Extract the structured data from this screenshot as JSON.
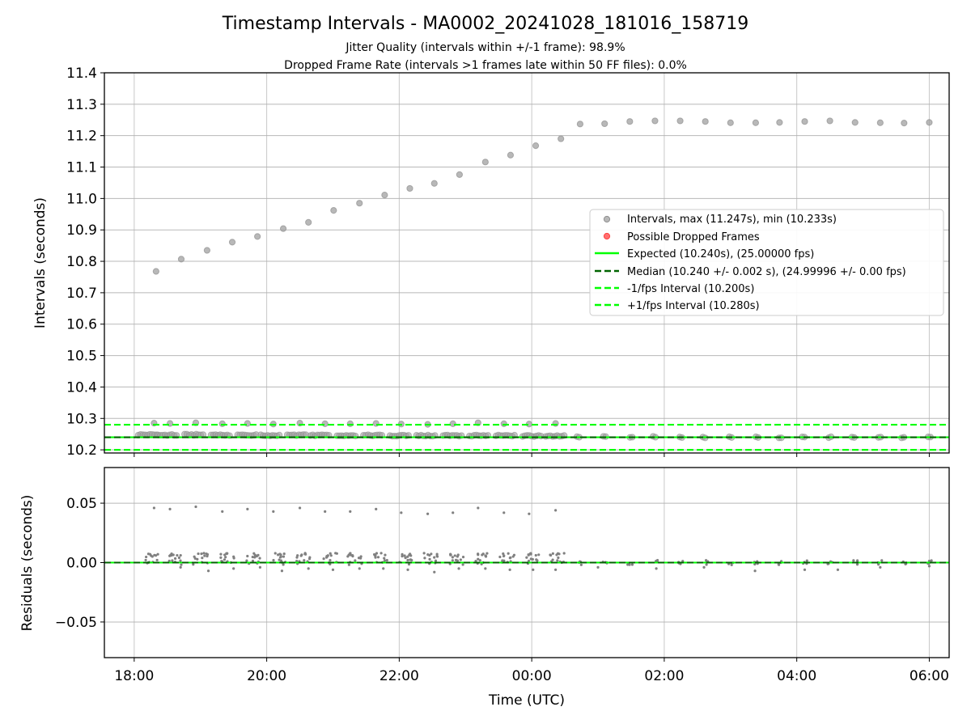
{
  "colors": {
    "intervals": "#a0a0a0",
    "dropped": "#ff4040",
    "expected": "#00ff00",
    "median": "#006400",
    "fps_bounds": "#00ff00",
    "residuals": "#808080",
    "grid": "#b0b0b0"
  },
  "chart_data": [
    {
      "type": "scatter",
      "title": "Timestamp Intervals - MA0002_20241028_181016_158719",
      "subtitle_lines": [
        "Jitter Quality (intervals within +/-1 frame): 98.9%",
        "Dropped Frame Rate (intervals >1 frames late within 50 FF files): 0.0%"
      ],
      "ylabel": "Intervals (seconds)",
      "xlim_hours": [
        17.55,
        30.3
      ],
      "ylim": [
        10.19,
        11.4
      ],
      "yticks": [
        "10.2",
        "10.3",
        "10.4",
        "10.5",
        "10.6",
        "10.7",
        "10.8",
        "10.9",
        "11.0",
        "11.1",
        "11.2",
        "11.3",
        "11.4"
      ],
      "grid": true,
      "legend_position": "center-right",
      "legend": [
        "Intervals, max (11.247s), min (10.233s)",
        "Possible Dropped Frames",
        "Expected (10.240s), (25.00000 fps)",
        "Median (10.240 +/- 0.002 s), (24.99996 +/- 0.00 fps)",
        "-1/fps Interval (10.200s)",
        "+1/fps Interval (10.280s)"
      ],
      "expected": 10.24,
      "median": 10.24,
      "lower_bound": 10.2,
      "upper_bound": 10.28,
      "max_interval_series": {
        "x_hours": [
          18.33,
          18.71,
          19.1,
          19.48,
          19.86,
          20.25,
          20.63,
          21.01,
          21.4,
          21.78,
          22.16,
          22.53,
          22.91,
          23.3,
          23.68,
          24.06,
          24.44,
          24.73,
          25.1,
          25.48,
          25.86,
          26.24,
          26.62,
          27.0,
          27.38,
          27.74,
          28.12,
          28.5,
          28.88,
          29.26,
          29.62,
          30.0
        ],
        "y": [
          10.768,
          10.807,
          10.835,
          10.861,
          10.879,
          10.904,
          10.924,
          10.962,
          10.985,
          11.011,
          11.032,
          11.048,
          11.076,
          11.116,
          11.138,
          11.168,
          11.19,
          11.237,
          11.238,
          11.245,
          11.247,
          11.247,
          11.245,
          11.241,
          11.241,
          11.242,
          11.245,
          11.247,
          11.242,
          11.241,
          11.24,
          11.242
        ]
      },
      "upper_outliers": {
        "x_hours": [
          18.3,
          18.54,
          18.93,
          19.33,
          19.71,
          20.1,
          20.5,
          20.88,
          21.26,
          21.65,
          22.03,
          22.43,
          22.81,
          23.19,
          23.58,
          23.96,
          24.36
        ],
        "y": [
          10.285,
          10.284,
          10.286,
          10.283,
          10.284,
          10.282,
          10.285,
          10.283,
          10.283,
          10.284,
          10.282,
          10.281,
          10.283,
          10.286,
          10.283,
          10.282,
          10.284
        ]
      },
      "core_band": {
        "x_hours": [
          18.2,
          18.5,
          18.9,
          19.3,
          19.7,
          20.05,
          20.45,
          20.8,
          21.2,
          21.6,
          22.0,
          22.4,
          22.8,
          23.2,
          23.6,
          24.0,
          24.35,
          24.7,
          25.1,
          25.5,
          25.85,
          26.25,
          26.6,
          27.0,
          27.4,
          27.75,
          28.1,
          28.5,
          28.85,
          29.25,
          29.6,
          30.0
        ],
        "y": [
          10.248,
          10.247,
          10.248,
          10.247,
          10.247,
          10.246,
          10.247,
          10.246,
          10.246,
          10.246,
          10.245,
          10.245,
          10.245,
          10.245,
          10.245,
          10.244,
          10.244,
          10.242,
          10.241,
          10.241,
          10.241,
          10.241,
          10.24,
          10.24,
          10.24,
          10.24,
          10.24,
          10.24,
          10.24,
          10.24,
          10.24,
          10.24
        ]
      }
    },
    {
      "type": "scatter",
      "xlabel": "Time (UTC)",
      "ylabel": "Residuals (seconds)",
      "xlim_hours": [
        17.55,
        30.3
      ],
      "ylim": [
        -0.08,
        0.08
      ],
      "yticks": [
        "−0.05",
        "0.00",
        "0.05"
      ],
      "xticks": [
        {
          "h": 18,
          "label": "18:00"
        },
        {
          "h": 20,
          "label": "20:00"
        },
        {
          "h": 22,
          "label": "22:00"
        },
        {
          "h": 24,
          "label": "00:00"
        },
        {
          "h": 26,
          "label": "02:00"
        },
        {
          "h": 28,
          "label": "04:00"
        },
        {
          "h": 30,
          "label": "06:00"
        }
      ],
      "grid": true,
      "zero_line": 0.0,
      "high_residuals": {
        "x_hours": [
          18.3,
          18.54,
          18.93,
          19.33,
          19.71,
          20.1,
          20.5,
          20.88,
          21.26,
          21.65,
          22.03,
          22.43,
          22.81,
          23.19,
          23.58,
          23.96,
          24.36
        ],
        "y": [
          0.046,
          0.045,
          0.047,
          0.043,
          0.045,
          0.043,
          0.046,
          0.043,
          0.043,
          0.045,
          0.042,
          0.041,
          0.042,
          0.046,
          0.042,
          0.041,
          0.044
        ]
      },
      "cluster_centers_hours": [
        18.25,
        18.62,
        19.0,
        19.4,
        19.8,
        20.18,
        20.56,
        20.95,
        21.33,
        21.72,
        22.1,
        22.48,
        22.86,
        23.25,
        23.63,
        24.0,
        24.38,
        24.73,
        25.1,
        25.48,
        25.86,
        26.24,
        26.62,
        27.0,
        27.38,
        27.74,
        28.12,
        28.5,
        28.88,
        29.26,
        29.62,
        30.0
      ],
      "low_residuals": {
        "x_hours": [
          18.7,
          19.12,
          19.5,
          19.9,
          20.23,
          20.63,
          21.0,
          21.4,
          21.76,
          22.13,
          22.53,
          22.9,
          23.3,
          23.67,
          24.02,
          24.36,
          25.0,
          25.88,
          26.6,
          27.37,
          28.12,
          28.62,
          29.26,
          30.0
        ],
        "y": [
          -0.004,
          -0.007,
          -0.005,
          -0.004,
          -0.007,
          -0.005,
          -0.006,
          -0.005,
          -0.005,
          -0.006,
          -0.008,
          -0.005,
          -0.005,
          -0.006,
          -0.006,
          -0.006,
          -0.004,
          -0.005,
          -0.004,
          -0.007,
          -0.006,
          -0.006,
          -0.004,
          -0.003
        ]
      }
    }
  ]
}
